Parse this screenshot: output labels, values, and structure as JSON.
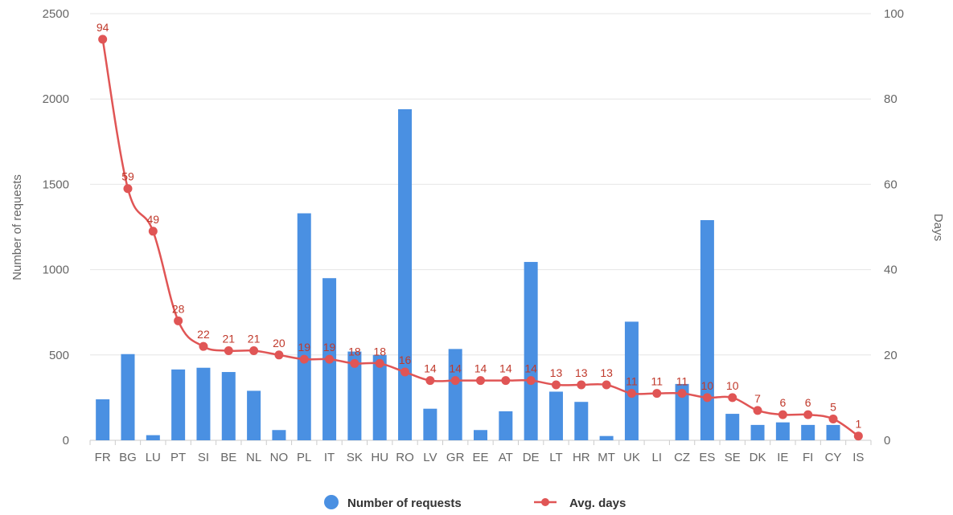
{
  "chart_data": {
    "type": "bar+line",
    "categories": [
      "FR",
      "BG",
      "LU",
      "PT",
      "SI",
      "BE",
      "NL",
      "NO",
      "PL",
      "IT",
      "SK",
      "HU",
      "RO",
      "LV",
      "GR",
      "EE",
      "AT",
      "DE",
      "LT",
      "HR",
      "MT",
      "UK",
      "LI",
      "CZ",
      "ES",
      "SE",
      "DK",
      "IE",
      "FI",
      "CY",
      "IS"
    ],
    "series": [
      {
        "name": "Number of requests",
        "type": "bar",
        "axis": "left",
        "color": "#4a90e2",
        "values": [
          240,
          505,
          30,
          415,
          425,
          400,
          290,
          60,
          1330,
          950,
          520,
          500,
          1940,
          185,
          535,
          60,
          170,
          1045,
          285,
          225,
          25,
          695,
          0,
          330,
          1290,
          155,
          90,
          105,
          90,
          90,
          0
        ]
      },
      {
        "name": "Avg. days",
        "type": "line",
        "axis": "right",
        "color": "#e05555",
        "values": [
          94,
          59,
          49,
          28,
          22,
          21,
          21,
          20,
          19,
          19,
          18,
          18,
          16,
          14,
          14,
          14,
          14,
          14,
          13,
          13,
          13,
          11,
          11,
          11,
          10,
          10,
          7,
          6,
          6,
          5,
          1
        ],
        "labels": [
          "94",
          "59",
          "49",
          "28",
          "22",
          "21",
          "21",
          "20",
          "19",
          "19",
          "18",
          "18",
          "16",
          "14",
          "14",
          "14",
          "14",
          "14",
          "13",
          "13",
          "13",
          "11",
          "11",
          "11",
          "10",
          "10",
          "7",
          "6",
          "6",
          "5",
          "1"
        ]
      }
    ],
    "ylabel": "Number of requests",
    "ylabel_right": "Days",
    "ylim": [
      0,
      2500
    ],
    "ylim_right": [
      0,
      100
    ],
    "yticks": [
      "0",
      "500",
      "1000",
      "1500",
      "2000",
      "2500"
    ],
    "yticks_right": [
      "0",
      "20",
      "40",
      "60",
      "80",
      "100"
    ],
    "grid": true,
    "legend_position": "bottom-center"
  }
}
